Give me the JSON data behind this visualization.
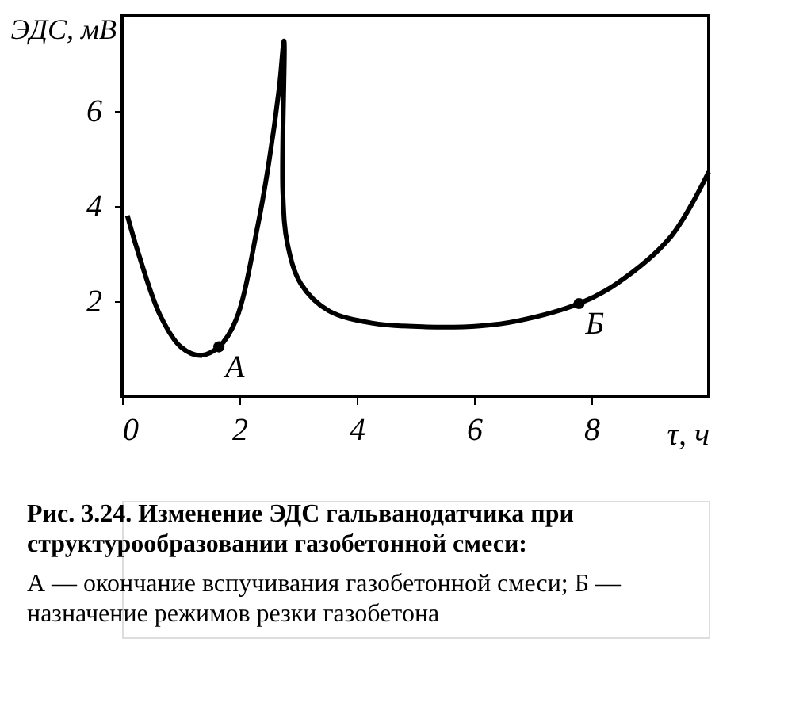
{
  "chart_data": {
    "type": "line",
    "xlabel": "τ, ч",
    "ylabel": "ЭДС, мВ",
    "x": [
      0.09,
      0.28,
      0.65,
      1.0,
      1.34,
      1.65,
      1.94,
      2.31,
      2.5,
      2.68,
      2.76,
      2.74,
      2.82,
      3.05,
      3.52,
      4.26,
      5.18,
      6.1,
      6.76,
      7.79,
      8.42,
      9.35,
      10.0
    ],
    "series": [
      {
        "color": "#000000",
        "values": [
          3.8,
          3.0,
          1.7,
          1.04,
          0.86,
          1.04,
          1.6,
          3.57,
          4.9,
          6.5,
          7.47,
          4.3,
          3.2,
          2.36,
          1.8,
          1.54,
          1.46,
          1.48,
          1.59,
          1.95,
          2.36,
          3.35,
          4.72
        ]
      }
    ],
    "xlim": [
      0,
      10
    ],
    "ylim": [
      0,
      8
    ],
    "xticks": [
      0,
      2,
      4,
      6,
      8
    ],
    "yticks": [
      2,
      4,
      6
    ],
    "grid": false,
    "marker": "none",
    "line_style": "solid",
    "annotations": [
      {
        "text": "А",
        "x": 1.65,
        "y": 1.04
      },
      {
        "text": "Б",
        "x": 7.79,
        "y": 1.95
      },
      "Рис. 3.24. Изменение ЭДС гальванодатчика при структурообразовании газобетонной смеси:",
      "А — окончание вспучивания газобетонной смеси; Б — назначение режимов резки газобетона"
    ]
  }
}
